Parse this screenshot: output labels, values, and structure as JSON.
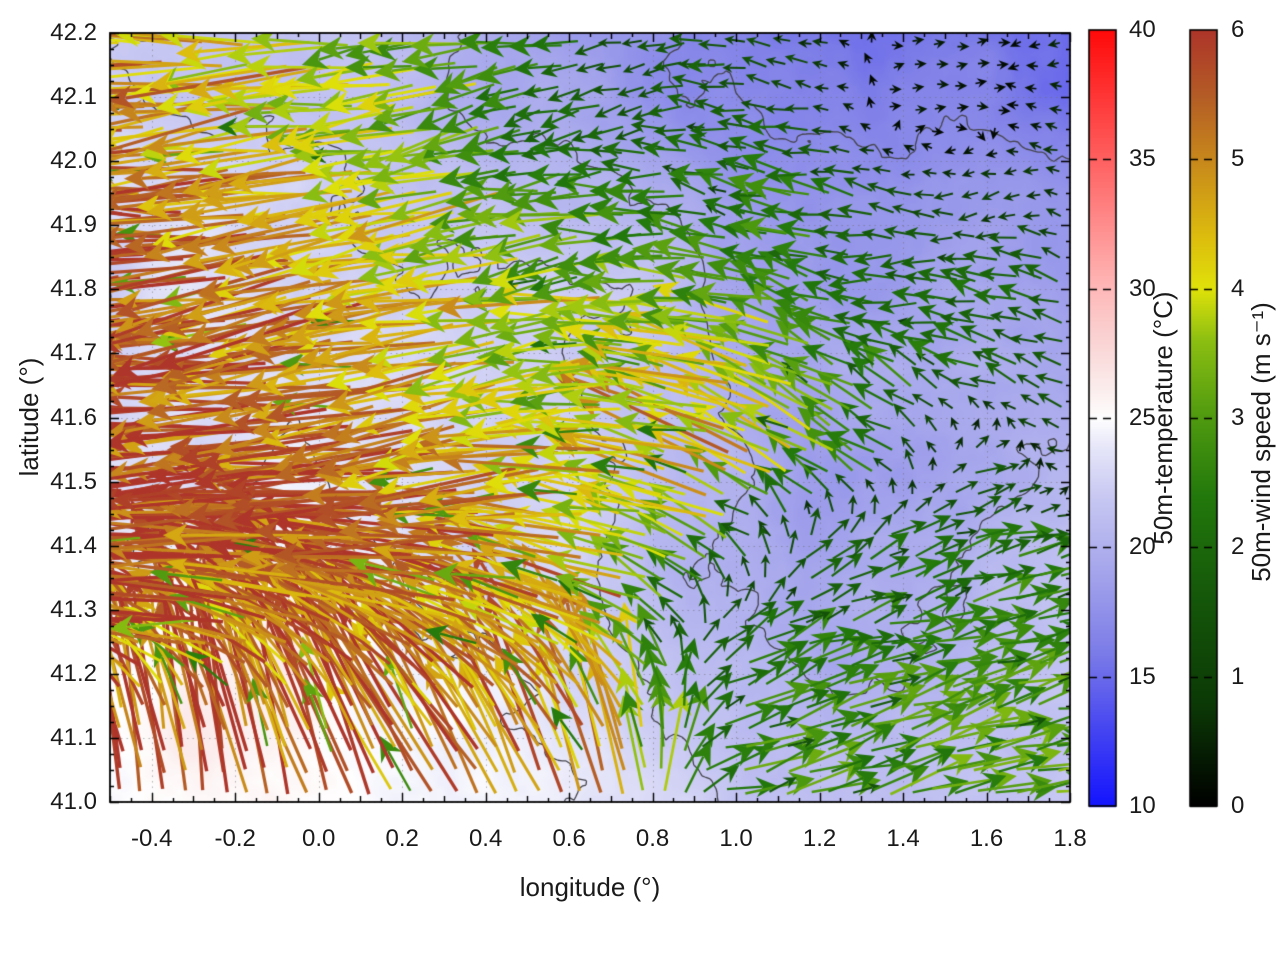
{
  "chart_data": {
    "type": "heatmap",
    "subtype": "vector-field-over-temperature-map-with-contours",
    "title": "",
    "xlabel": "longitude (°)",
    "ylabel": "latitude (°)",
    "xlim": [
      -0.5,
      1.8
    ],
    "ylim": [
      41.0,
      42.2
    ],
    "grid": "dotted-major",
    "x_ticks": [
      {
        "v": -0.4,
        "t": "-0.4"
      },
      {
        "v": -0.2,
        "t": "-0.2"
      },
      {
        "v": 0.0,
        "t": "0.0"
      },
      {
        "v": 0.2,
        "t": "0.2"
      },
      {
        "v": 0.4,
        "t": "0.4"
      },
      {
        "v": 0.6,
        "t": "0.6"
      },
      {
        "v": 0.8,
        "t": "0.8"
      },
      {
        "v": 1.0,
        "t": "1.0"
      },
      {
        "v": 1.2,
        "t": "1.2"
      },
      {
        "v": 1.4,
        "t": "1.4"
      },
      {
        "v": 1.6,
        "t": "1.6"
      },
      {
        "v": 1.8,
        "t": "1.8"
      }
    ],
    "y_ticks": [
      {
        "v": 41.0,
        "t": "41.0"
      },
      {
        "v": 41.1,
        "t": "41.1"
      },
      {
        "v": 41.2,
        "t": "41.2"
      },
      {
        "v": 41.3,
        "t": "41.3"
      },
      {
        "v": 41.4,
        "t": "41.4"
      },
      {
        "v": 41.5,
        "t": "41.5"
      },
      {
        "v": 41.6,
        "t": "41.6"
      },
      {
        "v": 41.7,
        "t": "41.7"
      },
      {
        "v": 41.8,
        "t": "41.8"
      },
      {
        "v": 41.9,
        "t": "41.9"
      },
      {
        "v": 42.0,
        "t": "42.0"
      },
      {
        "v": 42.1,
        "t": "42.1"
      },
      {
        "v": 42.2,
        "t": "42.2"
      }
    ],
    "colorbars": [
      {
        "id": "temperature",
        "title": "50m-temperature (°C)",
        "range": [
          10,
          40
        ],
        "ticks": [
          {
            "v": 40,
            "t": "40"
          },
          {
            "v": 35,
            "t": "35"
          },
          {
            "v": 30,
            "t": "30"
          },
          {
            "v": 25,
            "t": "25"
          },
          {
            "v": 20,
            "t": "20"
          },
          {
            "v": 15,
            "t": "15"
          },
          {
            "v": 10,
            "t": "10"
          }
        ],
        "palette": [
          [
            10,
            "#1414ff"
          ],
          [
            13,
            "#4646f2"
          ],
          [
            16,
            "#7d7de8"
          ],
          [
            19,
            "#a4a4ec"
          ],
          [
            22,
            "#c9c9f3"
          ],
          [
            24,
            "#e9e9fa"
          ],
          [
            25,
            "#ffffff"
          ],
          [
            26,
            "#fcefef"
          ],
          [
            28,
            "#fad4d4"
          ],
          [
            30,
            "#ffb9b9"
          ],
          [
            33,
            "#ff8484"
          ],
          [
            36,
            "#ff4f4f"
          ],
          [
            40,
            "#ff0a0a"
          ]
        ]
      },
      {
        "id": "wind-speed",
        "title": "50m-wind speed (m s⁻¹)",
        "range": [
          0,
          6
        ],
        "ticks": [
          {
            "v": 6,
            "t": "6"
          },
          {
            "v": 5,
            "t": "5"
          },
          {
            "v": 4,
            "t": "4"
          },
          {
            "v": 3,
            "t": "3"
          },
          {
            "v": 2,
            "t": "2"
          },
          {
            "v": 1,
            "t": "1"
          },
          {
            "v": 0,
            "t": "0"
          }
        ],
        "palette": [
          [
            0,
            "#000000"
          ],
          [
            0.8,
            "#0c3a06"
          ],
          [
            1.6,
            "#15570a"
          ],
          [
            2.4,
            "#23790c"
          ],
          [
            3.0,
            "#4f9a10"
          ],
          [
            3.6,
            "#8cbf12"
          ],
          [
            4.0,
            "#e0e20a"
          ],
          [
            4.4,
            "#ddbd0e"
          ],
          [
            5.0,
            "#c8881c"
          ],
          [
            5.5,
            "#b45c26"
          ],
          [
            6,
            "#ae352a"
          ]
        ]
      }
    ],
    "contour_levels": [
      17,
      20,
      22,
      24
    ],
    "temperature_field": {
      "units": "degC",
      "lons": [
        -0.5,
        -0.291,
        -0.082,
        0.127,
        0.336,
        0.545,
        0.755,
        0.964,
        1.173,
        1.382,
        1.591,
        1.8
      ],
      "lats": [
        41.0,
        41.133,
        41.267,
        41.4,
        41.533,
        41.667,
        41.8,
        41.933,
        42.067,
        42.2
      ],
      "values": [
        [
          24.6,
          24.9,
          25.3,
          25.1,
          24.6,
          24.1,
          23.4,
          21.9,
          21.4,
          21.0,
          21.5,
          22.0
        ],
        [
          25.6,
          26.0,
          25.5,
          24.9,
          24.3,
          23.8,
          22.4,
          21.0,
          20.5,
          20.8,
          21.1,
          21.6
        ],
        [
          25.1,
          25.6,
          25.8,
          24.6,
          23.6,
          23.1,
          22.0,
          20.4,
          19.6,
          20.1,
          20.6,
          21.1
        ],
        [
          24.1,
          24.6,
          24.1,
          23.6,
          23.1,
          22.6,
          21.6,
          20.0,
          18.6,
          19.1,
          20.1,
          20.6
        ],
        [
          23.6,
          23.1,
          23.6,
          23.1,
          22.6,
          22.1,
          21.6,
          20.6,
          18.1,
          18.6,
          19.6,
          20.1
        ],
        [
          23.1,
          22.6,
          23.1,
          22.9,
          22.6,
          22.1,
          21.1,
          20.1,
          19.1,
          19.6,
          20.1,
          19.6
        ],
        [
          22.6,
          23.1,
          22.6,
          22.1,
          21.6,
          21.9,
          21.1,
          19.6,
          19.1,
          18.6,
          19.1,
          18.6
        ],
        [
          23.1,
          22.6,
          22.1,
          21.6,
          21.1,
          20.6,
          20.1,
          19.1,
          18.1,
          17.6,
          18.1,
          17.1
        ],
        [
          22.6,
          22.1,
          21.6,
          21.1,
          20.6,
          19.6,
          18.6,
          17.6,
          16.6,
          16.1,
          16.6,
          15.6
        ],
        [
          22.1,
          21.6,
          21.1,
          20.9,
          20.1,
          19.1,
          18.1,
          16.6,
          15.6,
          15.1,
          15.6,
          14.6
        ]
      ]
    },
    "wind_field": {
      "units": "m/s",
      "lons": [
        -0.5,
        -0.291,
        -0.082,
        0.127,
        0.336,
        0.545,
        0.755,
        0.964,
        1.173,
        1.382,
        1.591,
        1.8
      ],
      "lats": [
        41.0,
        41.133,
        41.267,
        41.4,
        41.533,
        41.667,
        41.8,
        41.933,
        42.067,
        42.2
      ],
      "u": [
        [
          -1.2,
          -0.8,
          -1.5,
          -2.0,
          -2.5,
          -2.0,
          -1.0,
          2.8,
          2.6,
          2.8,
          2.9,
          3.0
        ],
        [
          -1.0,
          -1.2,
          -1.8,
          -2.4,
          -3.0,
          -2.6,
          -1.6,
          2.4,
          2.5,
          2.7,
          2.8,
          2.9
        ],
        [
          -5.5,
          -5.8,
          -5.2,
          -4.5,
          -5.0,
          -4.5,
          -3.5,
          1.5,
          2.2,
          2.4,
          2.5,
          2.6
        ],
        [
          -6.0,
          -6.0,
          -5.8,
          -5.5,
          -5.8,
          -5.0,
          -4.2,
          -3.0,
          1.2,
          1.8,
          2.2,
          2.3
        ],
        [
          -6.0,
          -5.8,
          -6.0,
          -5.6,
          -5.2,
          -4.6,
          -4.0,
          -4.5,
          -3.5,
          -1.5,
          1.5,
          -1.2
        ],
        [
          -5.8,
          -6.0,
          -5.5,
          -5.0,
          -4.5,
          -3.8,
          -3.2,
          -4.0,
          -3.0,
          -2.0,
          -1.8,
          -1.5
        ],
        [
          -5.5,
          -5.8,
          -5.2,
          -4.8,
          -4.2,
          -3.5,
          -3.8,
          -3.0,
          -2.2,
          -1.8,
          -2.0,
          -1.6
        ],
        [
          -5.5,
          -5.2,
          -4.8,
          -4.2,
          -3.6,
          -3.0,
          -2.5,
          -2.0,
          -2.8,
          -1.5,
          -1.2,
          -0.8
        ],
        [
          -5.2,
          -4.8,
          -4.5,
          -3.8,
          -3.2,
          -2.2,
          -1.5,
          -1.8,
          -1.2,
          0.4,
          0.3,
          -0.6
        ],
        [
          -5.0,
          -4.5,
          -4.0,
          -3.5,
          -3.0,
          -2.5,
          -1.2,
          -1.5,
          -1.0,
          0.35,
          0.3,
          -0.5
        ]
      ],
      "v": [
        [
          5.5,
          5.8,
          5.5,
          5.0,
          4.5,
          5.0,
          4.5,
          0.8,
          0.9,
          0.7,
          0.8,
          0.6
        ],
        [
          5.6,
          5.6,
          5.2,
          4.8,
          4.2,
          4.4,
          4.0,
          0.9,
          1.0,
          0.8,
          0.9,
          0.7
        ],
        [
          1.5,
          0.5,
          1.8,
          2.5,
          2.0,
          2.2,
          2.0,
          1.2,
          0.8,
          0.6,
          0.7,
          0.5
        ],
        [
          0.3,
          -0.3,
          0.5,
          0.8,
          0.2,
          1.0,
          1.2,
          1.5,
          1.2,
          0.8,
          0.6,
          0.5
        ],
        [
          -0.5,
          -0.8,
          0.0,
          -0.5,
          -1.0,
          -0.8,
          0.5,
          1.5,
          2.0,
          1.0,
          0.5,
          0.3
        ],
        [
          0.5,
          0.2,
          -0.5,
          -0.8,
          -1.0,
          -0.6,
          0.3,
          1.0,
          1.5,
          1.2,
          0.5,
          0.8
        ],
        [
          -1.0,
          -0.5,
          -1.2,
          -1.0,
          -0.5,
          -0.8,
          0.0,
          0.5,
          0.8,
          -0.3,
          0.3,
          0.5
        ],
        [
          0.5,
          0.0,
          -0.5,
          -0.8,
          -0.5,
          -0.4,
          0.3,
          0.5,
          0.3,
          0.4,
          -0.3,
          0.3
        ],
        [
          -0.5,
          -1.0,
          -0.5,
          -0.6,
          -0.8,
          -0.5,
          -0.5,
          0.3,
          0.2,
          0.1,
          -0.1,
          0.2
        ],
        [
          0.5,
          0.3,
          -0.5,
          -0.3,
          -0.5,
          -0.3,
          -0.4,
          0.2,
          0.3,
          0.0,
          0.1,
          -0.2
        ]
      ]
    },
    "colors": {
      "contour_line": "#45454d",
      "grid_line": "#6e6e6e",
      "axis_frame": "#000000",
      "text": "#1a1a1a",
      "background": "#ffffff"
    }
  }
}
